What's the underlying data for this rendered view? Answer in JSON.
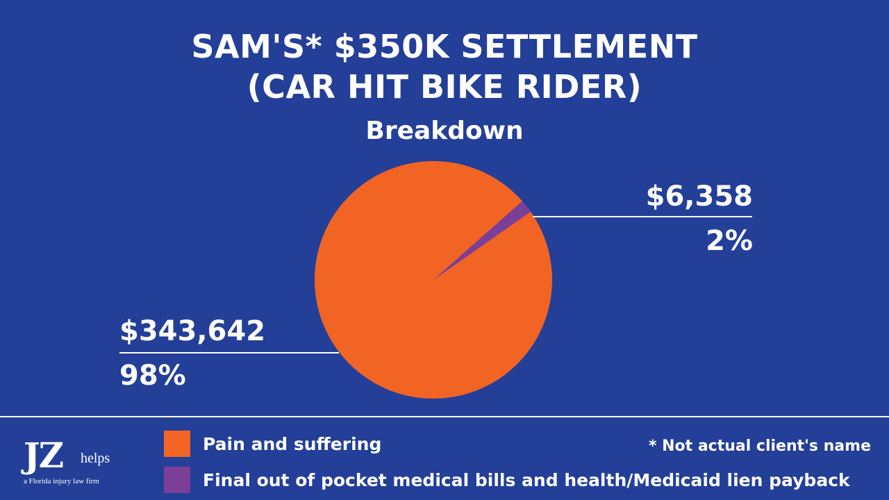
{
  "header": {
    "title_line1": "SAM'S* $350K SETTLEMENT",
    "title_line2": "(CAR HIT BIKE RIDER)",
    "subtitle": "Breakdown"
  },
  "chart_data": {
    "type": "pie",
    "title": "SAM'S* $350K SETTLEMENT (CAR HIT BIKE RIDER)",
    "subtitle": "Breakdown",
    "slices": [
      {
        "label": "Pain and suffering",
        "value": 343642,
        "value_label": "$343,642",
        "percent_label": "98%",
        "color": "#f26424"
      },
      {
        "label": "Final out of pocket medical bills and health/Medicaid lien payback",
        "value": 6358,
        "value_label": "$6,358",
        "percent_label": "2%",
        "color": "#7b3f98"
      }
    ],
    "legend_position": "bottom"
  },
  "footnote": "* Not actual client's name",
  "logo": {
    "mark": "JZ",
    "word": "helps",
    "tagline": "a Florida injury law firm"
  },
  "colors": {
    "background": "#233f98",
    "text": "#ffffff"
  }
}
